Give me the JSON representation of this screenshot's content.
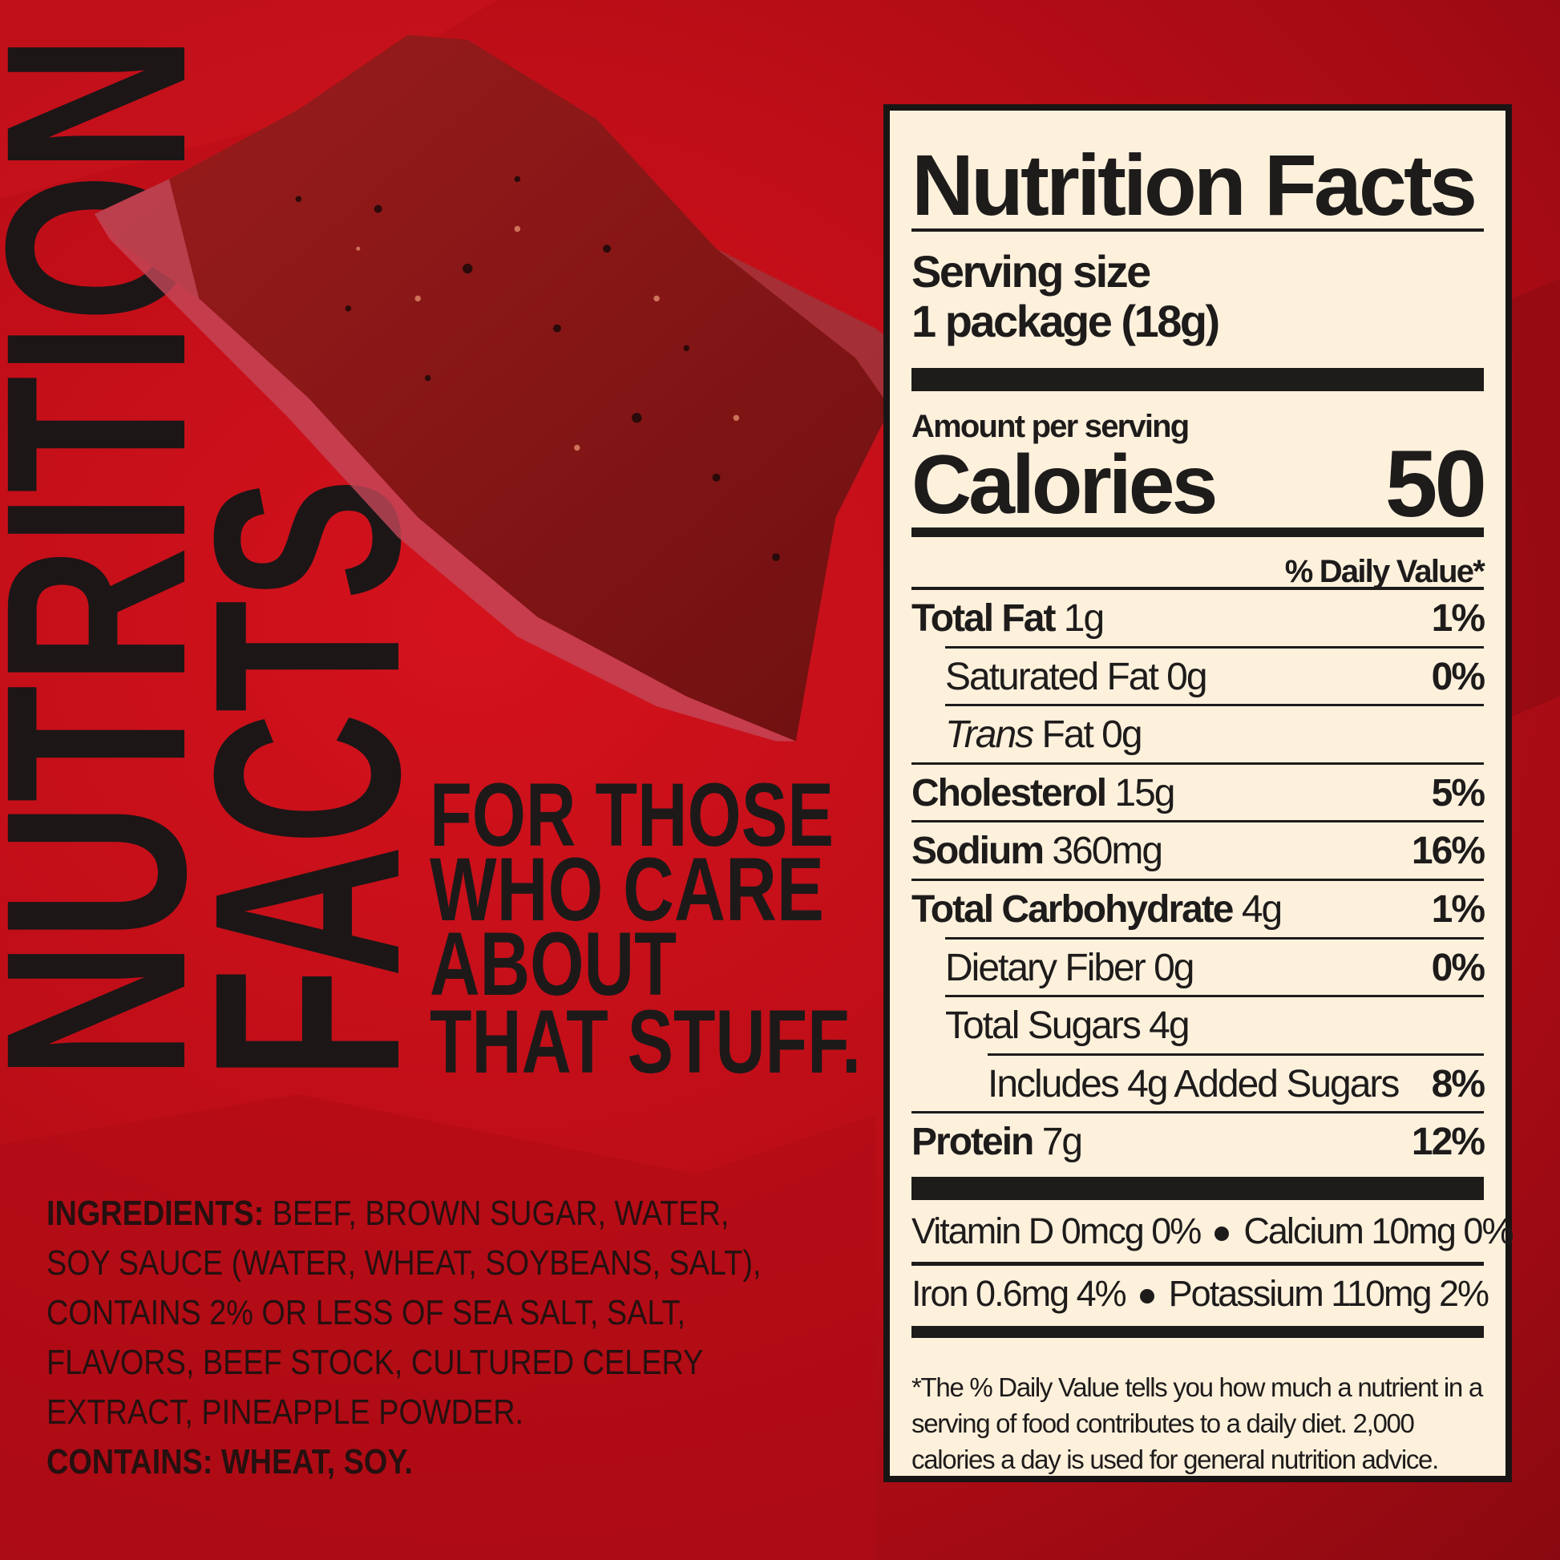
{
  "colors": {
    "background": "#c00e18",
    "label_bg": "#fdf1dc",
    "ink": "#1e1b1b",
    "jerky": "#8e1a1a"
  },
  "side": {
    "word1": "NUTRITION",
    "word2": "FACTS"
  },
  "tagline": [
    "FOR THOSE",
    "WHO CARE",
    "ABOUT",
    "THAT STUFF."
  ],
  "ingredients": {
    "label": "INGREDIENTS:",
    "lines": [
      " BEEF, BROWN SUGAR, WATER,",
      "SOY SAUCE (WATER, WHEAT, SOYBEANS, SALT),",
      "CONTAINS 2% OR LESS OF SEA SALT, SALT,",
      "FLAVORS, BEEF STOCK, CULTURED CELERY",
      "EXTRACT, PINEAPPLE POWDER."
    ],
    "contains": "CONTAINS: WHEAT, SOY."
  },
  "label": {
    "title": "Nutrition Facts",
    "serving_size_label": "Serving size",
    "serving_size_value": "1 package (18g)",
    "amount_per_serving": "Amount per serving",
    "calories_label": "Calories",
    "calories_value": "50",
    "daily_value_header": "% Daily Value*",
    "rows": [
      {
        "bold": "Total Fat",
        "italic": "",
        "rest": " 1g",
        "pct": "1%",
        "indent": 0
      },
      {
        "bold": "",
        "italic": "",
        "rest": "Saturated Fat 0g",
        "pct": "0%",
        "indent": 1
      },
      {
        "bold": "",
        "italic": "Trans",
        "rest": " Fat 0g",
        "pct": "",
        "indent": 1
      },
      {
        "bold": "Cholesterol",
        "italic": "",
        "rest": " 15g",
        "pct": "5%",
        "indent": 0
      },
      {
        "bold": "Sodium",
        "italic": "",
        "rest": " 360mg",
        "pct": "16%",
        "indent": 0
      },
      {
        "bold": "Total Carbohydrate",
        "italic": "",
        "rest": " 4g",
        "pct": "1%",
        "indent": 0
      },
      {
        "bold": "",
        "italic": "",
        "rest": "Dietary Fiber 0g",
        "pct": "0%",
        "indent": 1
      },
      {
        "bold": "",
        "italic": "",
        "rest": "Total Sugars 4g",
        "pct": "",
        "indent": 1
      },
      {
        "bold": "",
        "italic": "",
        "rest": "Includes 4g Added Sugars",
        "pct": "8%",
        "indent": 2
      },
      {
        "bold": "Protein",
        "italic": "",
        "rest": " 7g",
        "pct": "12%",
        "indent": 0
      }
    ],
    "vitamins": [
      [
        "Vitamin D 0mcg 0%",
        "Calcium 10mg 0%"
      ],
      [
        "Iron 0.6mg 4%",
        "Potassium 110mg 2%"
      ]
    ],
    "footnote": "*The % Daily Value tells you how much a nutrient in a serving of food contributes to a daily diet. 2,000 calories a day is used for general nutrition advice."
  }
}
